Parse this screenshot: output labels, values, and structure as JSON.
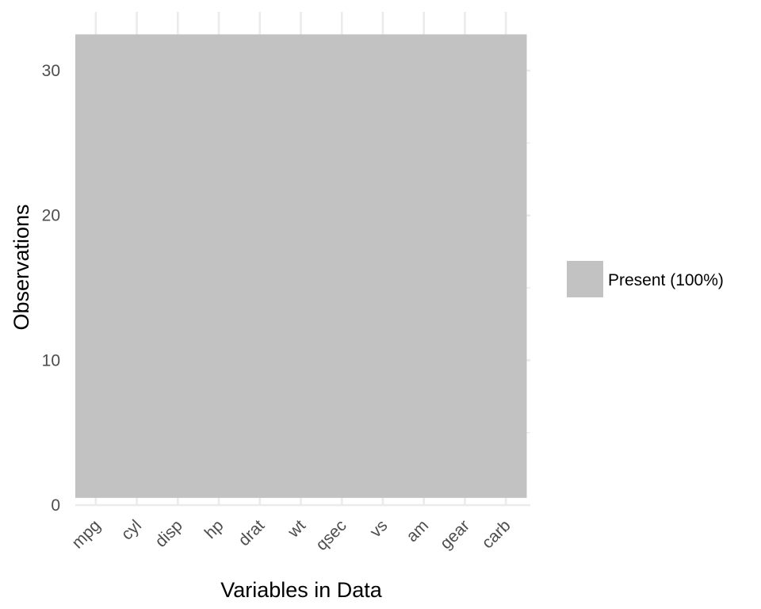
{
  "chart_data": {
    "type": "heatmap",
    "title": "",
    "xlabel": "Variables in Data",
    "ylabel": "Observations",
    "categories": [
      "mpg",
      "cyl",
      "disp",
      "hp",
      "drat",
      "wt",
      "qsec",
      "vs",
      "am",
      "gear",
      "carb"
    ],
    "n_observations": 32,
    "ylim": [
      0,
      32.5
    ],
    "yticks": [
      0,
      10,
      20,
      30
    ],
    "grid": true,
    "legend_position": "right",
    "series": [
      {
        "name": "Present (100%)",
        "color": "#c2c2c2",
        "present_fraction": [
          1,
          1,
          1,
          1,
          1,
          1,
          1,
          1,
          1,
          1,
          1
        ]
      }
    ]
  },
  "colors": {
    "gridline": "#ebebeb",
    "tick_text": "#4d4d4d",
    "present_fill": "#c2c2c2"
  }
}
